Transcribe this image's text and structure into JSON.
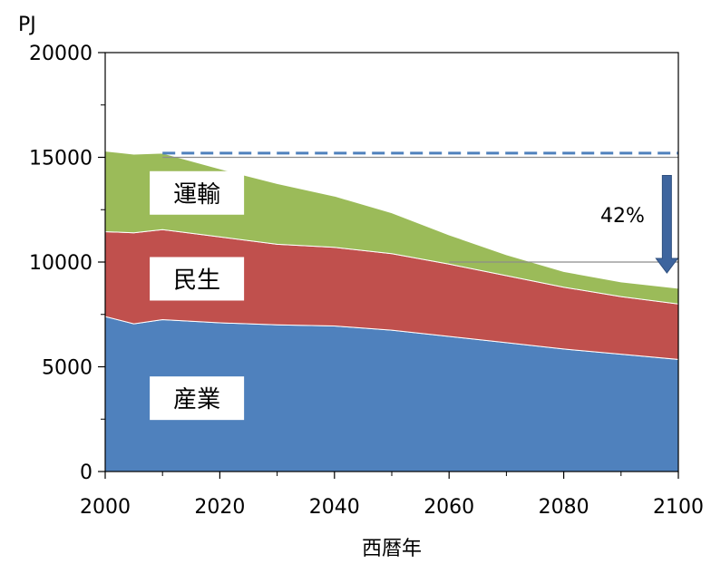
{
  "chart_data": {
    "type": "area",
    "stacked": true,
    "ylabel": "PJ",
    "xlabel": "西暦年",
    "xlim": [
      2000,
      2100
    ],
    "ylim": [
      0,
      20000
    ],
    "x_ticks": [
      2000,
      2020,
      2040,
      2060,
      2080,
      2100
    ],
    "y_ticks": [
      0,
      5000,
      10000,
      15000,
      20000
    ],
    "x": [
      2000,
      2005,
      2010,
      2020,
      2030,
      2040,
      2050,
      2060,
      2070,
      2080,
      2090,
      2100
    ],
    "series": [
      {
        "name": "産業",
        "color": "#4f81bd",
        "values": [
          7400,
          7050,
          7250,
          7100,
          7000,
          6950,
          6750,
          6450,
          6150,
          5850,
          5600,
          5350
        ]
      },
      {
        "name": "民生",
        "color": "#c0504d",
        "values": [
          4050,
          4350,
          4300,
          4100,
          3850,
          3750,
          3650,
          3450,
          3200,
          2950,
          2750,
          2650
        ]
      },
      {
        "name": "運輸",
        "color": "#9bbb59",
        "values": [
          3850,
          3750,
          3650,
          3250,
          2900,
          2450,
          1950,
          1400,
          1000,
          750,
          700,
          750
        ]
      }
    ],
    "annotations": {
      "reference_line_value": 15200,
      "reference_line_color": "#4f81bd",
      "arrow_from": 15000,
      "arrow_to": 10000,
      "arrow_x": 2098,
      "arrow_color": "#3e659e",
      "reduction_label": "42%"
    }
  }
}
